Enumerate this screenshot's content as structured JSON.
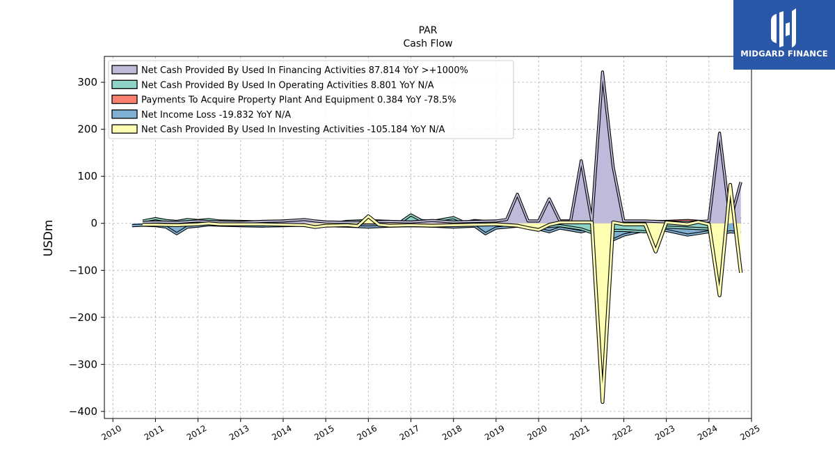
{
  "chart_data": {
    "type": "area",
    "title": "PAR",
    "subtitle": "Cash Flow",
    "ylabel": "USDm",
    "xlabel": "",
    "xlim": [
      2009.8,
      2025.0
    ],
    "ylim": [
      -415,
      355
    ],
    "yticks": [
      300,
      200,
      100,
      0,
      -100,
      -200,
      -300,
      -400
    ],
    "ytick_labels": [
      "300",
      "200",
      "100",
      "0",
      "−100",
      "−200",
      "−300",
      "−400"
    ],
    "xticks": [
      2010,
      2011,
      2012,
      2013,
      2014,
      2015,
      2016,
      2017,
      2018,
      2019,
      2020,
      2021,
      2022,
      2023,
      2024,
      2025
    ],
    "xtick_labels": [
      "2010",
      "2011",
      "2012",
      "2013",
      "2014",
      "2015",
      "2016",
      "2017",
      "2018",
      "2019",
      "2020",
      "2021",
      "2022",
      "2023",
      "2024",
      "2025"
    ],
    "grid": true,
    "legend_position": "top-left",
    "legend": [
      {
        "label": "Net Cash Provided By Used In Financing Activities  87.814 YoY >+1000%",
        "color": "#bebada"
      },
      {
        "label": "Net Cash Provided By Used In Operating Activities  8.801 YoY N/A",
        "color": "#8dd3c7"
      },
      {
        "label": "Payments To Acquire Property Plant And Equipment  0.384 YoY -78.5%",
        "color": "#fb8072"
      },
      {
        "label": "Net Income Loss  -19.832 YoY N/A",
        "color": "#80b1d3"
      },
      {
        "label": "Net Cash Provided By Used In Investing Activities  -105.184 YoY N/A",
        "color": "#ffffb3"
      }
    ],
    "series": [
      {
        "name": "Net Income Loss",
        "color": "#80b1d3",
        "stroke_width": 2,
        "points": [
          [
            2010.45,
            -5
          ],
          [
            2010.7,
            -4
          ],
          [
            2011.0,
            -5
          ],
          [
            2011.25,
            -8
          ],
          [
            2011.5,
            -22
          ],
          [
            2011.75,
            -8
          ],
          [
            2012.0,
            -6
          ],
          [
            2012.25,
            -3
          ],
          [
            2012.5,
            -4
          ],
          [
            2013.0,
            -5
          ],
          [
            2013.5,
            -6
          ],
          [
            2014.0,
            -5
          ],
          [
            2014.5,
            -4
          ],
          [
            2015.0,
            -5
          ],
          [
            2015.5,
            -6
          ],
          [
            2016.0,
            -8
          ],
          [
            2016.5,
            -6
          ],
          [
            2017.0,
            -5
          ],
          [
            2017.5,
            -6
          ],
          [
            2018.0,
            -8
          ],
          [
            2018.5,
            -6
          ],
          [
            2018.75,
            -22
          ],
          [
            2019.0,
            -10
          ],
          [
            2019.5,
            -6
          ],
          [
            2020.0,
            -12
          ],
          [
            2020.25,
            -18
          ],
          [
            2020.5,
            -10
          ],
          [
            2021.0,
            -18
          ],
          [
            2021.25,
            -12
          ],
          [
            2021.5,
            -28
          ],
          [
            2021.75,
            -35
          ],
          [
            2022.0,
            -25
          ],
          [
            2022.25,
            -20
          ],
          [
            2022.5,
            -15
          ],
          [
            2022.75,
            -12
          ],
          [
            2023.0,
            -15
          ],
          [
            2023.5,
            -25
          ],
          [
            2024.0,
            -18
          ],
          [
            2024.25,
            -22
          ],
          [
            2024.5,
            -18
          ],
          [
            2024.75,
            -19.832
          ]
        ]
      },
      {
        "name": "Net Cash Provided By Used In Operating Activities",
        "color": "#8dd3c7",
        "stroke_width": 2,
        "points": [
          [
            2010.7,
            5
          ],
          [
            2011.0,
            10
          ],
          [
            2011.25,
            6
          ],
          [
            2011.5,
            4
          ],
          [
            2011.75,
            8
          ],
          [
            2012.0,
            6
          ],
          [
            2012.25,
            8
          ],
          [
            2012.5,
            5
          ],
          [
            2013.0,
            4
          ],
          [
            2013.5,
            3
          ],
          [
            2014.0,
            5
          ],
          [
            2014.5,
            4
          ],
          [
            2014.75,
            2
          ],
          [
            2015.0,
            -2
          ],
          [
            2015.5,
            4
          ],
          [
            2016.0,
            6
          ],
          [
            2016.5,
            4
          ],
          [
            2016.75,
            2
          ],
          [
            2017.0,
            18
          ],
          [
            2017.25,
            6
          ],
          [
            2017.5,
            4
          ],
          [
            2018.0,
            12
          ],
          [
            2018.25,
            2
          ],
          [
            2018.5,
            6
          ],
          [
            2019.0,
            2
          ],
          [
            2019.5,
            -5
          ],
          [
            2020.0,
            -8
          ],
          [
            2020.5,
            -5
          ],
          [
            2021.0,
            -12
          ],
          [
            2021.25,
            -20
          ],
          [
            2021.5,
            -35
          ],
          [
            2021.75,
            -15
          ],
          [
            2022.0,
            -15
          ],
          [
            2022.5,
            -18
          ],
          [
            2022.75,
            -12
          ],
          [
            2023.0,
            -8
          ],
          [
            2023.5,
            -10
          ],
          [
            2024.0,
            -12
          ],
          [
            2024.25,
            -15
          ],
          [
            2024.5,
            15
          ],
          [
            2024.75,
            8.801
          ]
        ]
      },
      {
        "name": "Payments To Acquire Property Plant And Equipment",
        "color": "#fb8072",
        "stroke_width": 2,
        "points": [
          [
            2010.7,
            0.5
          ],
          [
            2011.5,
            0.5
          ],
          [
            2012.5,
            0.8
          ],
          [
            2013.5,
            0.8
          ],
          [
            2014.5,
            0.8
          ],
          [
            2015.5,
            0.8
          ],
          [
            2016.5,
            1
          ],
          [
            2017.5,
            1
          ],
          [
            2018.5,
            1
          ],
          [
            2019.0,
            2
          ],
          [
            2019.5,
            4
          ],
          [
            2020.0,
            4
          ],
          [
            2020.5,
            5
          ],
          [
            2021.0,
            5
          ],
          [
            2021.5,
            5
          ],
          [
            2022.0,
            4
          ],
          [
            2022.5,
            4
          ],
          [
            2023.0,
            4
          ],
          [
            2023.5,
            6
          ],
          [
            2024.0,
            3
          ],
          [
            2024.5,
            3
          ],
          [
            2024.75,
            0.384
          ]
        ]
      },
      {
        "name": "Net Cash Provided By Used In Financing Activities",
        "color": "#bebada",
        "stroke_width": 2,
        "points": [
          [
            2010.7,
            2
          ],
          [
            2011.0,
            3
          ],
          [
            2011.5,
            2
          ],
          [
            2012.0,
            5
          ],
          [
            2012.5,
            3
          ],
          [
            2013.0,
            2
          ],
          [
            2013.5,
            4
          ],
          [
            2014.0,
            5
          ],
          [
            2014.5,
            8
          ],
          [
            2014.75,
            5
          ],
          [
            2015.0,
            3
          ],
          [
            2015.5,
            2
          ],
          [
            2016.0,
            3
          ],
          [
            2016.5,
            4
          ],
          [
            2017.0,
            3
          ],
          [
            2017.5,
            6
          ],
          [
            2018.0,
            3
          ],
          [
            2018.5,
            4
          ],
          [
            2019.0,
            5
          ],
          [
            2019.25,
            8
          ],
          [
            2019.5,
            62
          ],
          [
            2019.75,
            5
          ],
          [
            2020.0,
            5
          ],
          [
            2020.25,
            52
          ],
          [
            2020.5,
            5
          ],
          [
            2020.75,
            5
          ],
          [
            2021.0,
            133
          ],
          [
            2021.25,
            5
          ],
          [
            2021.5,
            322
          ],
          [
            2021.75,
            120
          ],
          [
            2022.0,
            5
          ],
          [
            2022.5,
            5
          ],
          [
            2023.0,
            3
          ],
          [
            2023.5,
            2
          ],
          [
            2024.0,
            5
          ],
          [
            2024.25,
            192
          ],
          [
            2024.5,
            5
          ],
          [
            2024.75,
            87.814
          ]
        ]
      },
      {
        "name": "Net Cash Provided By Used In Investing Activities",
        "color": "#ffffb3",
        "stroke_width": 3,
        "points": [
          [
            2010.7,
            -3
          ],
          [
            2011.0,
            -3
          ],
          [
            2011.5,
            -4
          ],
          [
            2012.0,
            -2
          ],
          [
            2012.25,
            0
          ],
          [
            2012.5,
            -2
          ],
          [
            2013.0,
            -2
          ],
          [
            2013.5,
            -2
          ],
          [
            2014.0,
            -3
          ],
          [
            2014.5,
            -4
          ],
          [
            2014.75,
            -8
          ],
          [
            2015.0,
            -5
          ],
          [
            2015.5,
            -4
          ],
          [
            2015.75,
            -6
          ],
          [
            2016.0,
            15
          ],
          [
            2016.25,
            -3
          ],
          [
            2016.5,
            -5
          ],
          [
            2017.0,
            -4
          ],
          [
            2017.5,
            -5
          ],
          [
            2018.0,
            -4
          ],
          [
            2018.5,
            -3
          ],
          [
            2019.0,
            -2
          ],
          [
            2019.5,
            -5
          ],
          [
            2019.75,
            -10
          ],
          [
            2020.0,
            -14
          ],
          [
            2020.25,
            -3
          ],
          [
            2020.5,
            2
          ],
          [
            2021.0,
            2
          ],
          [
            2021.25,
            2
          ],
          [
            2021.5,
            -380
          ],
          [
            2021.75,
            2
          ],
          [
            2022.0,
            -2
          ],
          [
            2022.5,
            -2
          ],
          [
            2022.75,
            -60
          ],
          [
            2023.0,
            2
          ],
          [
            2023.5,
            -2
          ],
          [
            2023.75,
            3
          ],
          [
            2024.0,
            -2
          ],
          [
            2024.25,
            -153
          ],
          [
            2024.5,
            82
          ],
          [
            2024.75,
            -105.184
          ]
        ]
      }
    ]
  },
  "logo": {
    "text": "MIDGARD FINANCE",
    "color": "#2b57a8"
  }
}
